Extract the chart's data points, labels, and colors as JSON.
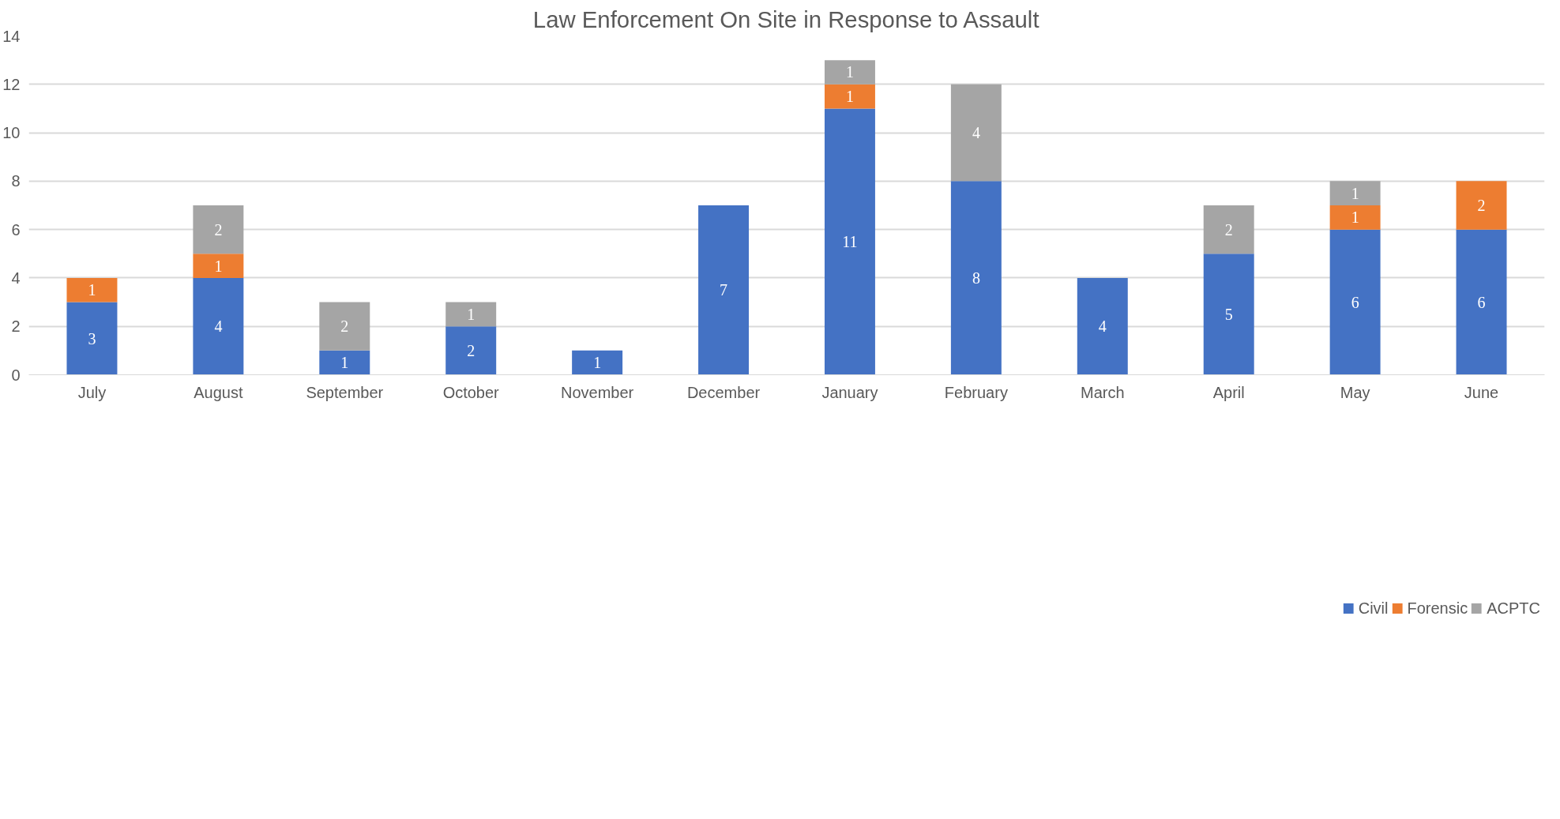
{
  "chart_data": {
    "type": "bar",
    "title": "Law Enforcement On Site in Response to Assault",
    "categories": [
      "July",
      "August",
      "September",
      "October",
      "November",
      "December",
      "January",
      "February",
      "March",
      "April",
      "May",
      "June"
    ],
    "stacked": true,
    "data_labels": true,
    "legend": "bottom",
    "grid": "y",
    "ylim": [
      0,
      14
    ],
    "yticks": [
      0,
      2,
      4,
      6,
      8,
      10,
      12,
      14
    ],
    "series": [
      {
        "name": "Civil",
        "color": "#4472c4",
        "values": [
          3,
          4,
          1,
          2,
          1,
          7,
          11,
          8,
          4,
          5,
          6,
          6
        ]
      },
      {
        "name": "Forensic",
        "color": "#ed7d31",
        "values": [
          1,
          1,
          null,
          null,
          null,
          null,
          1,
          null,
          null,
          null,
          1,
          2
        ]
      },
      {
        "name": "ACPTC",
        "color": "#a5a5a5",
        "values": [
          null,
          2,
          2,
          1,
          null,
          null,
          1,
          4,
          null,
          2,
          1,
          null
        ]
      }
    ]
  }
}
